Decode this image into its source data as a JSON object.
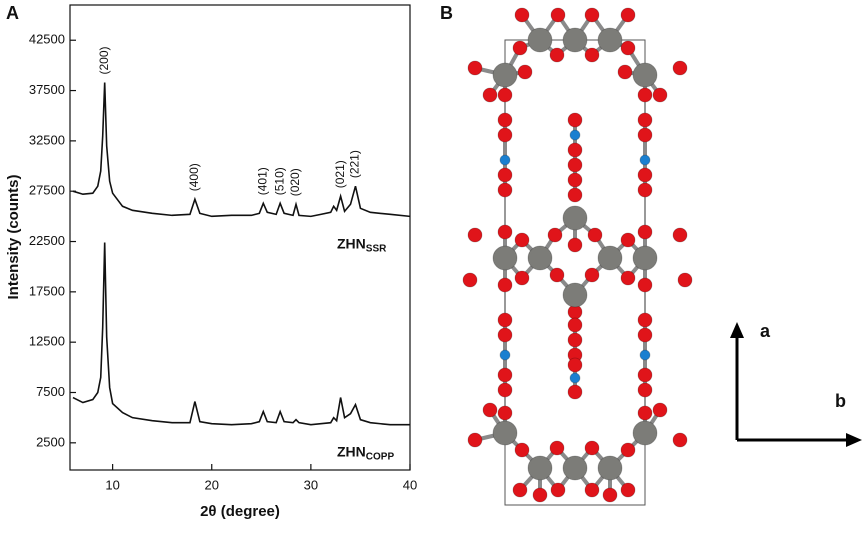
{
  "chart_data": {
    "type": "line",
    "panel_label": "A",
    "xlabel": "2θ (degree)",
    "ylabel": "Intensity (counts)",
    "xlim": [
      5.7,
      40
    ],
    "xticks": [
      10,
      20,
      30,
      40
    ],
    "ylim": [
      -200,
      46000
    ],
    "yticks": [
      2500,
      7500,
      12500,
      17500,
      22500,
      27500,
      32500,
      37500,
      42500
    ],
    "x": [
      6,
      7,
      8,
      8.5,
      8.8,
      9.0,
      9.2,
      9.4,
      9.7,
      10,
      11,
      12,
      14,
      16,
      17.8,
      18.3,
      18.8,
      20,
      22,
      24,
      24.8,
      25.2,
      25.6,
      26.5,
      26.9,
      27.3,
      28.2,
      28.5,
      28.8,
      30,
      31,
      32,
      32.3,
      32.6,
      33,
      33.4,
      34,
      34.5,
      35,
      36,
      38,
      40
    ],
    "series": [
      {
        "name": "ZHN",
        "subscript": "SSR",
        "color": "#111111",
        "values": [
          27500,
          27200,
          27300,
          28000,
          29500,
          33000,
          38300,
          32000,
          28500,
          27300,
          26000,
          25600,
          25300,
          25100,
          25200,
          26700,
          25300,
          25000,
          25100,
          25100,
          25300,
          26300,
          25400,
          25200,
          26300,
          25300,
          25100,
          26200,
          25100,
          25000,
          25200,
          25400,
          26000,
          25600,
          27000,
          25500,
          26200,
          28000,
          25800,
          25400,
          25200,
          25000
        ]
      },
      {
        "name": "ZHN",
        "subscript": "COPP",
        "color": "#111111",
        "values": [
          7000,
          6500,
          6800,
          7500,
          9000,
          14000,
          22400,
          13000,
          8000,
          6400,
          5500,
          5000,
          4700,
          4500,
          4500,
          6600,
          4600,
          4400,
          4300,
          4400,
          4600,
          5600,
          4600,
          4500,
          5600,
          4600,
          4500,
          4800,
          4500,
          4300,
          4400,
          4500,
          5000,
          4700,
          7000,
          5000,
          5400,
          6300,
          4800,
          4500,
          4300,
          4300
        ]
      }
    ],
    "peak_labels": [
      {
        "label": "(200)",
        "x": 9.2
      },
      {
        "label": "(400)",
        "x": 18.3
      },
      {
        "label": "(401)",
        "x": 25.2
      },
      {
        "label": "(510)",
        "x": 26.9
      },
      {
        "label": "(020)",
        "x": 28.5
      },
      {
        "label": "(021)",
        "x": 33
      },
      {
        "label": "(221)",
        "x": 34.5
      }
    ]
  },
  "panel_b": {
    "panel_label": "B",
    "axis_a": "a",
    "axis_b": "b"
  }
}
